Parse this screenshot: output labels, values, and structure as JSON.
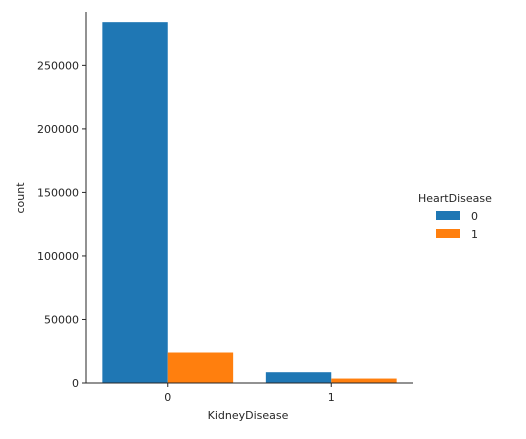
{
  "chart_data": {
    "type": "bar",
    "categories": [
      "0",
      "1"
    ],
    "xlabel": "KidneyDisease",
    "ylabel": "count",
    "ylim": [
      0,
      292000
    ],
    "yticks": [
      0,
      50000,
      100000,
      150000,
      200000,
      250000
    ],
    "series": [
      {
        "name": "0",
        "color": "#1f77b4",
        "values": [
          284000,
          8500
        ]
      },
      {
        "name": "1",
        "color": "#ff7f0e",
        "values": [
          24000,
          3500
        ]
      }
    ],
    "legend": {
      "title": "HeartDisease",
      "placement": "right"
    },
    "grid": false
  }
}
